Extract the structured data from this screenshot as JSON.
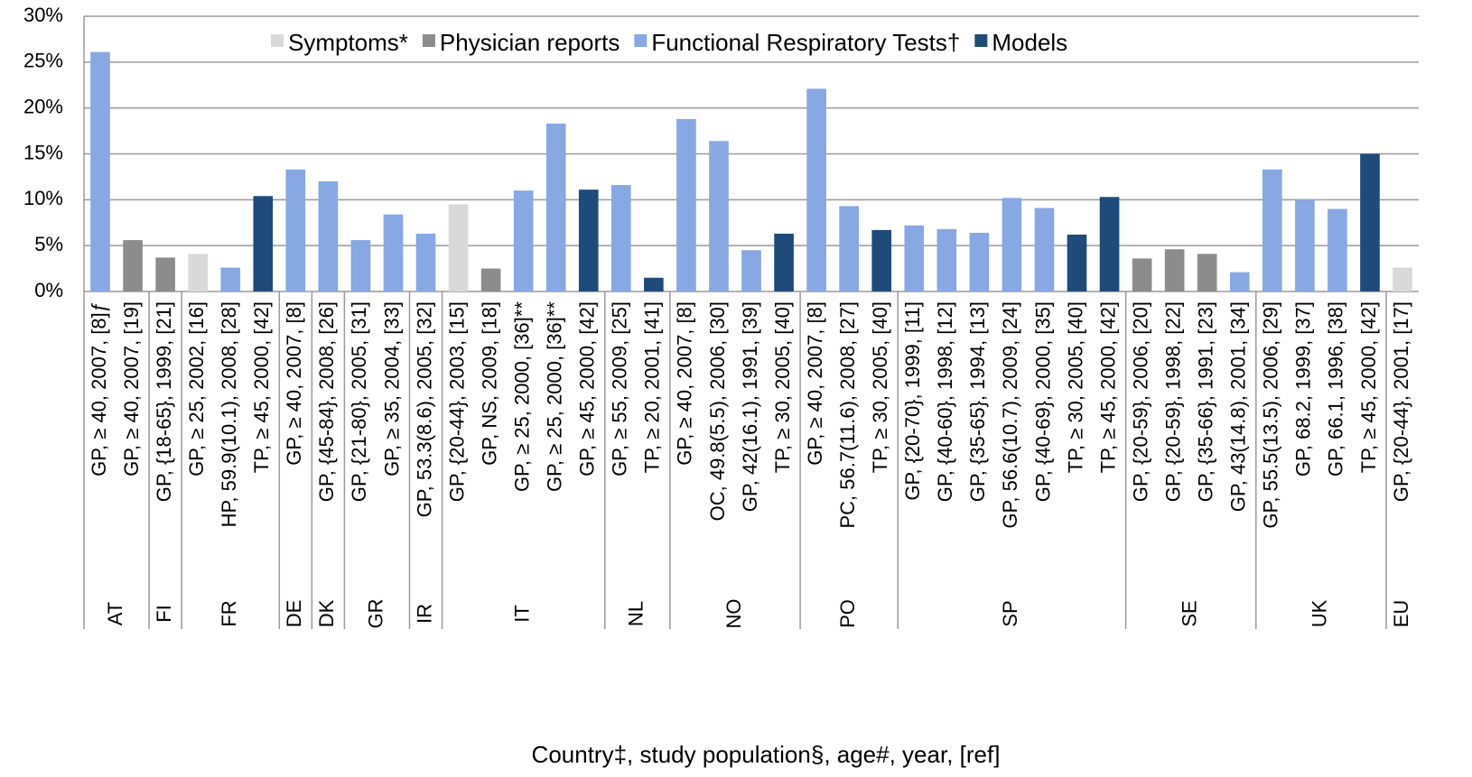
{
  "chart_data": {
    "type": "bar",
    "x_label": "Country‡, study population§, age#, year, [ref]",
    "categories": [
      "GP, ≥ 40, 2007, [8]ƒ",
      "GP, ≥ 40, 2007, [19]",
      "GP, {18-65}, 1999, [21]",
      "GP, ≥ 25, 2002, [16]",
      "HP, 59.9(10.1), 2008, [28]",
      "TP, ≥ 45, 2000, [42]",
      "GP, ≥ 40, 2007, [8]",
      "GP, {45-84}, 2008, [26]",
      "GP, {21-80}, 2005, [31]",
      "GP, ≥ 35, 2004, [33]",
      "GP, 53.3(8.6), 2005, [32]",
      "GP, {20-44}, 2003, [15]",
      "GP, NS, 2009, [18]",
      "GP, ≥ 25, 2000, [36]**",
      "GP, ≥ 25, 2000, [36]**",
      "GP, ≥ 45, 2000, [42]",
      "GP, ≥ 55, 2009, [25]",
      "TP, ≥ 20, 2001, [41]",
      "GP, ≥ 40, 2007, [8]",
      "OC, 49.8(5.5), 2006, [30]",
      "GP, 42(16.1), 1991, [39]",
      "TP, ≥ 30, 2005, [40]",
      "GP, ≥ 40, 2007, [8]",
      "PC, 56.7(11.6), 2008, [27]",
      "TP, ≥ 30, 2005, [40]",
      "GP, {20-70}, 1999, [11]",
      "GP, {40-60}, 1998, [12]",
      "GP, {35-65}, 1994, [13]",
      "GP, 56.6(10.7), 2009, [24]",
      "GP, {40-69}, 2000, [35]",
      "TP, ≥ 30, 2005, [40]",
      "TP, ≥ 45, 2000, [42]",
      "GP, {20-59}, 2006, [20]",
      "GP, {20-59}, 1998, [22]",
      "GP, {35-66}, 1991, [23]",
      "GP, 43(14.8), 2001, [34]",
      "GP, 55.5(13.5), 2006, [29]",
      "GP, 68.2, 1999, [37]",
      "GP, 66.1, 1996, [38]",
      "TP, ≥ 45, 2000, [42]",
      "GP, {20-44}, 2001, [17]"
    ],
    "countries": [
      "AT",
      "AT",
      "FI",
      "FR",
      "FR",
      "FR",
      "DE",
      "DK",
      "GR",
      "GR",
      "IR",
      "IT",
      "IT",
      "IT",
      "IT",
      "IT",
      "NL",
      "NL",
      "NO",
      "NO",
      "NO",
      "NO",
      "PO",
      "PO",
      "PO",
      "SP",
      "SP",
      "SP",
      "SP",
      "SP",
      "SP",
      "SP",
      "SE",
      "SE",
      "SE",
      "SE",
      "UK",
      "UK",
      "UK",
      "UK",
      "EU"
    ],
    "series": [
      {
        "name": "Symptoms*",
        "color": "#d9d9d9",
        "values": [
          null,
          null,
          null,
          4.1,
          null,
          null,
          null,
          null,
          null,
          null,
          null,
          9.5,
          null,
          null,
          null,
          null,
          null,
          null,
          null,
          null,
          null,
          null,
          null,
          null,
          null,
          null,
          null,
          null,
          null,
          null,
          null,
          null,
          null,
          null,
          null,
          null,
          null,
          null,
          null,
          null,
          2.6
        ]
      },
      {
        "name": "Physician reports",
        "color": "#8c8c8c",
        "values": [
          null,
          5.6,
          3.7,
          null,
          null,
          null,
          null,
          null,
          null,
          null,
          null,
          null,
          2.5,
          null,
          null,
          null,
          null,
          null,
          null,
          null,
          null,
          null,
          null,
          null,
          null,
          null,
          null,
          null,
          null,
          null,
          null,
          null,
          3.6,
          4.6,
          4.1,
          null,
          null,
          null,
          null,
          null,
          null
        ]
      },
      {
        "name": "Functional Respiratory Tests†",
        "color": "#88a8e3",
        "values": [
          26.1,
          null,
          null,
          null,
          2.6,
          null,
          13.3,
          12.0,
          5.6,
          8.4,
          6.3,
          null,
          null,
          11.0,
          18.3,
          null,
          11.6,
          null,
          18.8,
          16.4,
          4.5,
          null,
          22.1,
          9.3,
          null,
          7.2,
          6.8,
          6.4,
          10.2,
          9.1,
          null,
          null,
          null,
          null,
          null,
          2.1,
          13.3,
          10.0,
          9.0,
          null,
          null
        ]
      },
      {
        "name": "Models",
        "color": "#1f4b7a",
        "values": [
          null,
          null,
          null,
          null,
          null,
          10.4,
          null,
          null,
          null,
          null,
          null,
          null,
          null,
          null,
          null,
          11.1,
          null,
          1.5,
          null,
          null,
          null,
          6.3,
          null,
          null,
          6.7,
          null,
          null,
          null,
          null,
          null,
          6.2,
          10.3,
          null,
          null,
          null,
          null,
          null,
          null,
          null,
          15.0,
          null
        ]
      }
    ],
    "ylim": [
      0,
      30
    ],
    "yticks": [
      {
        "value": 0,
        "label": "0%"
      },
      {
        "value": 5,
        "label": "5%"
      },
      {
        "value": 10,
        "label": "10%"
      },
      {
        "value": 15,
        "label": "15%"
      },
      {
        "value": 20,
        "label": "20%"
      },
      {
        "value": 25,
        "label": "25%"
      },
      {
        "value": 30,
        "label": "30%"
      }
    ],
    "grid": true,
    "legend": "top"
  }
}
